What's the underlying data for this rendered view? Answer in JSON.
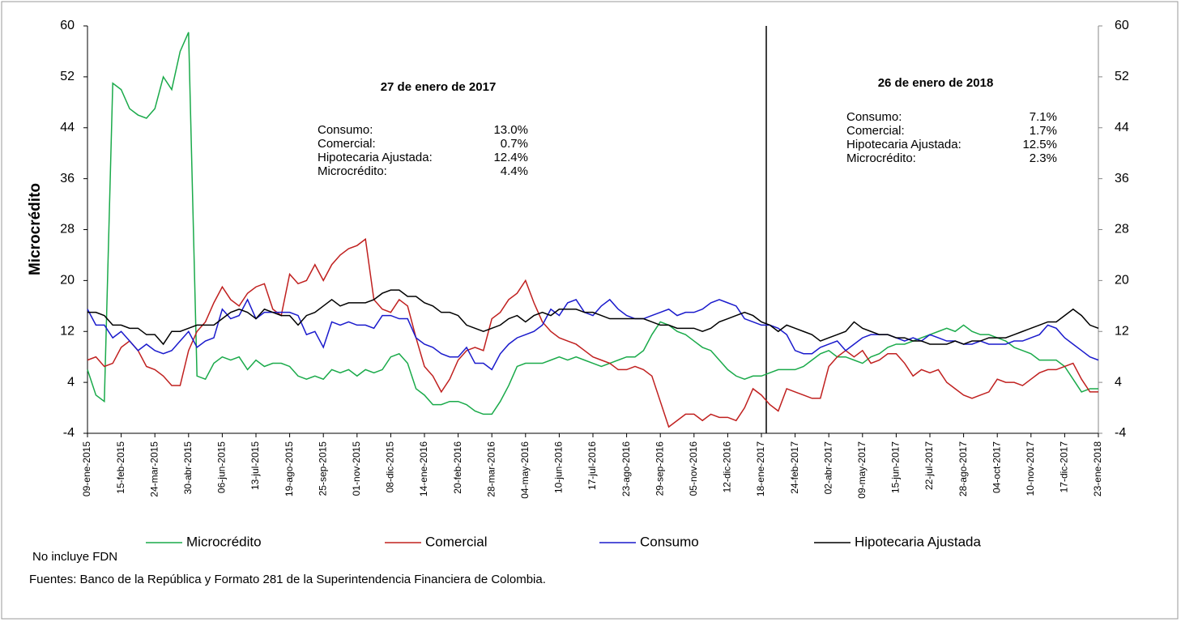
{
  "chart_data": {
    "type": "line",
    "ylabel": "Microcrédito",
    "categories": [
      "09-ene-2015",
      null,
      null,
      null,
      "15-feb-2015",
      null,
      null,
      null,
      "24-mar-2015",
      null,
      null,
      null,
      "30-abr-2015",
      null,
      null,
      null,
      "06-jun-2015",
      null,
      null,
      null,
      "13-jul-2015",
      null,
      null,
      null,
      "19-ago-2015",
      null,
      null,
      null,
      "25-sep-2015",
      null,
      null,
      null,
      "01-nov-2015",
      null,
      null,
      null,
      "08-dic-2015",
      null,
      null,
      null,
      "14-ene-2016",
      null,
      null,
      null,
      "20-feb-2016",
      null,
      null,
      null,
      "28-mar-2016",
      null,
      null,
      null,
      "04-may-2016",
      null,
      null,
      null,
      "10-jun-2016",
      null,
      null,
      null,
      "17-jul-2016",
      null,
      null,
      null,
      "23-ago-2016",
      null,
      null,
      null,
      "29-sep-2016",
      null,
      null,
      null,
      "05-nov-2016",
      null,
      null,
      null,
      "12-dic-2016",
      null,
      null,
      null,
      "18-ene-2017",
      null,
      null,
      null,
      "24-feb-2017",
      null,
      null,
      null,
      "02-abr-2017",
      null,
      null,
      null,
      "09-may-2017",
      null,
      null,
      null,
      "15-jun-2017",
      null,
      null,
      null,
      "22-jul-2017",
      null,
      null,
      null,
      "28-ago-2017",
      null,
      null,
      null,
      "04-oct-2017",
      null,
      null,
      null,
      "10-nov-2017",
      null,
      null,
      null,
      "17-dic-2017",
      null,
      null,
      null,
      "23-ene-2018"
    ],
    "series": [
      {
        "name": "Microcrédito",
        "color": "#1aaa4a",
        "values": [
          6,
          2,
          1,
          51,
          50,
          47,
          46,
          45.5,
          47,
          52,
          50,
          56,
          59,
          5,
          4.5,
          7,
          8,
          7.5,
          8,
          6,
          7.5,
          6.5,
          7,
          7,
          6.5,
          5,
          4.5,
          5,
          4.5,
          6,
          5.5,
          6,
          5,
          6,
          5.5,
          6,
          8,
          8.5,
          7,
          3,
          2,
          0.5,
          0.5,
          1,
          1,
          0.5,
          -0.5,
          -1,
          -1,
          1,
          3.5,
          6.5,
          7,
          7,
          7,
          7.5,
          8,
          7.5,
          8,
          7.5,
          7,
          6.5,
          7,
          7.5,
          8,
          8,
          9,
          11.5,
          13.5,
          13,
          12,
          11.5,
          10.5,
          9.5,
          9,
          7.5,
          6,
          5,
          4.5,
          5,
          5,
          5.5,
          6,
          6,
          6,
          6.5,
          7.5,
          8.5,
          9,
          8,
          8,
          7.5,
          7,
          8,
          8.5,
          9.5,
          10,
          10,
          10.5,
          11,
          11.5,
          12,
          12.5,
          12,
          13,
          12,
          11.5,
          11.5,
          11,
          10.5,
          9.5,
          9,
          8.5,
          7.5,
          7.5,
          7.5,
          6.5,
          4.5,
          2.5,
          3,
          3
        ]
      },
      {
        "name": "Comercial",
        "color": "#c0201f",
        "values": [
          7.5,
          8,
          6.5,
          7,
          9.5,
          10.5,
          9,
          6.5,
          6,
          5,
          3.5,
          3.5,
          9,
          12,
          13.5,
          16.5,
          19,
          17,
          16,
          18,
          19,
          19.5,
          15.5,
          14.5,
          21,
          19.5,
          20,
          22.5,
          20,
          22.5,
          24,
          25,
          25.5,
          26.5,
          17,
          15.5,
          15,
          17,
          16,
          11,
          6.5,
          5,
          2.5,
          4.5,
          7.5,
          9,
          9.5,
          9,
          14,
          15,
          17,
          18,
          20,
          16.5,
          13.5,
          12,
          11,
          10.5,
          10,
          9,
          8,
          7.5,
          7,
          6,
          6,
          6.5,
          6,
          5,
          1,
          -3,
          -2,
          -1,
          -1,
          -2,
          -1,
          -1.5,
          -1.5,
          -2,
          0,
          3,
          2,
          0.5,
          -0.5,
          3,
          2.5,
          2,
          1.5,
          1.5,
          6.5,
          8,
          9,
          8,
          9,
          7,
          7.5,
          8.5,
          8.5,
          7,
          5,
          6,
          5.5,
          6,
          4,
          3,
          2,
          1.5,
          2,
          2.5,
          4.5,
          4,
          4,
          3.5,
          4.5,
          5.5,
          6,
          6,
          6.5,
          7,
          4.5,
          2.5,
          2.5
        ]
      },
      {
        "name": "Consumo",
        "color": "#1a1acc",
        "values": [
          15.5,
          13,
          13,
          11,
          12,
          10.5,
          9,
          10,
          9,
          8.5,
          9,
          10.5,
          12,
          9.5,
          10.5,
          11,
          15.5,
          14,
          14.5,
          17,
          14,
          15,
          15,
          15,
          15,
          14.5,
          11.5,
          12,
          9.5,
          13.5,
          13,
          13.5,
          13,
          13,
          12.5,
          14.5,
          14.5,
          14,
          14,
          11,
          10,
          9.5,
          8.5,
          8,
          8,
          9.5,
          7,
          7,
          6,
          8.5,
          10,
          11,
          11.5,
          12,
          13,
          15.5,
          14.5,
          16.5,
          17,
          15,
          14.5,
          16,
          17,
          15.5,
          14.5,
          14,
          14,
          14.5,
          15,
          15.5,
          14.5,
          15,
          15,
          15.5,
          16.5,
          17,
          16.5,
          16,
          14,
          13.5,
          13,
          13,
          12.5,
          11.5,
          9,
          8.5,
          8.5,
          9.5,
          10,
          10.5,
          9,
          10,
          11,
          11.5,
          11.5,
          11.5,
          11,
          10.5,
          11,
          10.5,
          11.5,
          11,
          10.5,
          10.5,
          10,
          10,
          10.5,
          10,
          10,
          10,
          10.5,
          10.5,
          11,
          11.5,
          13,
          12.5,
          11,
          10,
          9,
          8,
          7.5
        ]
      },
      {
        "name": "Hipotecaria Ajustada",
        "color": "#000000",
        "values": [
          15,
          15,
          14.5,
          13,
          13,
          12.5,
          12.5,
          11.5,
          11.5,
          10,
          12,
          12,
          12.5,
          13,
          13,
          13,
          14,
          15,
          15.5,
          15,
          14,
          15.5,
          15,
          14.5,
          14.5,
          13,
          14.5,
          15,
          16,
          17,
          16,
          16.5,
          16.5,
          16.5,
          17,
          18,
          18.5,
          18.5,
          17.5,
          17.5,
          16.5,
          16,
          15,
          15,
          14.5,
          13,
          12.5,
          12,
          12.5,
          13,
          14,
          14.5,
          13.5,
          14.5,
          15,
          14.5,
          15.5,
          15.5,
          15.5,
          15,
          15,
          14.5,
          14,
          14,
          14,
          14,
          14,
          13.5,
          13,
          13,
          12.5,
          12.5,
          12.5,
          12,
          12.5,
          13.5,
          14,
          14.5,
          15,
          14.5,
          13.5,
          13,
          12,
          13,
          12.5,
          12,
          11.5,
          10.5,
          11,
          11.5,
          12,
          13.5,
          12.5,
          12,
          11.5,
          11.5,
          11,
          11,
          10.5,
          10.5,
          10,
          10,
          10,
          10.5,
          10,
          10.5,
          10.5,
          11,
          11,
          11,
          11.5,
          12,
          12.5,
          13,
          13.5,
          13.5,
          14.5,
          15.5,
          14.5,
          13,
          12.5
        ]
      }
    ],
    "ylim": [
      -4,
      60
    ],
    "yticks": [
      -4,
      4,
      12,
      20,
      28,
      36,
      44,
      52,
      60
    ],
    "y2lim": [
      -4,
      60
    ],
    "y2ticks": [
      -4,
      4,
      12,
      20,
      28,
      36,
      44,
      52,
      60
    ],
    "grid": false,
    "legend": "bottom",
    "vline": "18-ene-2017",
    "annotations": [
      {
        "title": "27 de enero de 2017",
        "rows": [
          [
            "Consumo:",
            "13.0%"
          ],
          [
            "Comercial:",
            "0.7%"
          ],
          [
            "Hipotecaria Ajustada:",
            "12.4%"
          ],
          [
            "Microcrédito:",
            "4.4%"
          ]
        ]
      },
      {
        "title": "26 de enero de 2018",
        "rows": [
          [
            "Consumo:",
            "7.1%"
          ],
          [
            "Comercial:",
            "1.7%"
          ],
          [
            "Hipotecaria Ajustada:",
            "12.5%"
          ],
          [
            "Microcrédito:",
            "2.3%"
          ]
        ]
      }
    ],
    "notes": [
      "No incluye FDN",
      "Fuentes: Banco de la República y Formato 281 de la Superintendencia Financiera de Colombia."
    ]
  }
}
